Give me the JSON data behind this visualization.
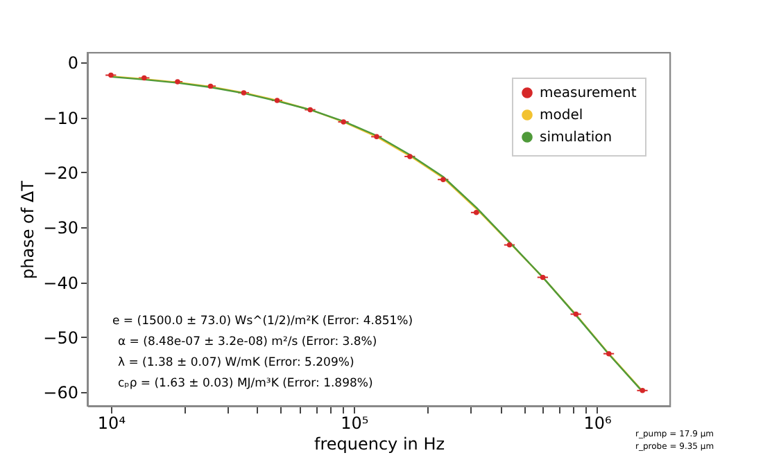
{
  "chart_data": {
    "type": "scatter",
    "xlabel": "frequency in Hz",
    "ylabel": "phase of ΔT",
    "x": [
      10000,
      13700,
      18800,
      25700,
      35200,
      48300,
      66100,
      90600,
      124000,
      170000,
      233000,
      319000,
      437000,
      599000,
      820000,
      1120000,
      1540000
    ],
    "series": [
      {
        "name": "measurement",
        "color": "#d62728",
        "marker": "circle",
        "values": [
          -2.3,
          -2.8,
          -3.5,
          -4.3,
          -5.5,
          -6.9,
          -8.6,
          -10.8,
          -13.5,
          -17.1,
          -21.3,
          -27.3,
          -33.2,
          -39.1,
          -45.8,
          -53.0,
          -59.7
        ],
        "xerrors": [
          500,
          700,
          900,
          1300,
          1800,
          2400,
          3300,
          4500,
          6200,
          8500,
          11700,
          16000,
          21900,
          30000,
          41000,
          56000,
          77000
        ]
      },
      {
        "name": "model",
        "type": "line",
        "color": "#f2c230",
        "values": [
          -2.5,
          -3.0,
          -3.6,
          -4.4,
          -5.5,
          -6.9,
          -8.6,
          -10.8,
          -13.5,
          -17.0,
          -21.0,
          -26.6,
          -32.8,
          -39.1,
          -45.9,
          -53.0,
          -59.8
        ]
      },
      {
        "name": "simulation",
        "type": "line",
        "color": "#4f9a3a",
        "values": [
          -2.6,
          -3.1,
          -3.7,
          -4.5,
          -5.6,
          -7.0,
          -8.6,
          -10.7,
          -13.3,
          -16.8,
          -20.8,
          -26.4,
          -32.7,
          -39.1,
          -46.0,
          -53.1,
          -59.9
        ]
      }
    ],
    "xlim": [
      8000,
      2000000
    ],
    "ylim": [
      -62.5,
      1.8
    ],
    "xticks": [
      {
        "value": 10000,
        "label": "10⁴"
      },
      {
        "value": 20000,
        "label": null
      },
      {
        "value": 30000,
        "label": null
      },
      {
        "value": 40000,
        "label": null
      },
      {
        "value": 50000,
        "label": null
      },
      {
        "value": 60000,
        "label": null
      },
      {
        "value": 70000,
        "label": null
      },
      {
        "value": 80000,
        "label": null
      },
      {
        "value": 90000,
        "label": null
      },
      {
        "value": 100000,
        "label": "10⁵"
      },
      {
        "value": 200000,
        "label": null
      },
      {
        "value": 300000,
        "label": null
      },
      {
        "value": 400000,
        "label": null
      },
      {
        "value": 500000,
        "label": null
      },
      {
        "value": 600000,
        "label": null
      },
      {
        "value": 700000,
        "label": null
      },
      {
        "value": 800000,
        "label": null
      },
      {
        "value": 900000,
        "label": null
      },
      {
        "value": 1000000,
        "label": "10⁶"
      }
    ],
    "yticks": [
      0,
      {
        "value": -10,
        "label": "−10"
      },
      {
        "value": -20,
        "label": "−20"
      },
      {
        "value": -30,
        "label": "−30"
      },
      {
        "value": -40,
        "label": "−40"
      },
      {
        "value": -50,
        "label": "−50"
      },
      {
        "value": -60,
        "label": "−60"
      }
    ],
    "log": "x",
    "grid": false,
    "legend": "top right",
    "annotations": [
      "e = (1500.0 ± 73.0) Ws^(1/2)/m²K   (Error: 4.851%)",
      "α = (8.48e-07 ± 3.2e-08) m²/s   (Error: 3.8%)",
      "λ = (1.38 ± 0.07) W/mK   (Error: 5.209%)",
      "cₚρ = (1.63 ± 0.03) MJ/m³K   (Error: 1.898%)",
      "r_pump = 17.9 µm",
      "r_probe = 9.35 µm"
    ]
  }
}
